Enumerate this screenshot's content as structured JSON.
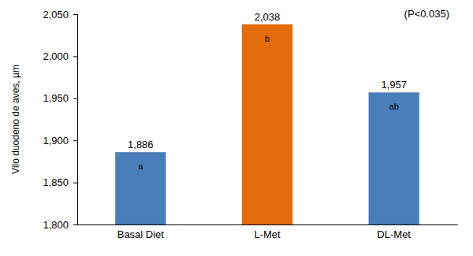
{
  "chart_data": {
    "type": "bar",
    "y_label": "Vilo duodeno de aves, µm",
    "annotation": "(P<0.035)",
    "categories": [
      "Basal Diet",
      "L-Met",
      "DL-Met"
    ],
    "values": [
      1886,
      2038,
      1957
    ],
    "value_labels": [
      "1,886",
      "2,038",
      "1,957"
    ],
    "significance_letters": [
      "a",
      "b",
      "ab"
    ],
    "colors": [
      "#4a7ebb",
      "#e46c0a",
      "#4a7ebb"
    ],
    "data_labels": true,
    "grid": false,
    "ylim": [
      1800,
      2050
    ],
    "yticks": [
      {
        "value": 1800,
        "label": "1,800"
      },
      {
        "value": 1850,
        "label": "1,850"
      },
      {
        "value": 1900,
        "label": "1,900"
      },
      {
        "value": 1950,
        "label": "1,950"
      },
      {
        "value": 2000,
        "label": "2,000"
      },
      {
        "value": 2050,
        "label": "2,050"
      }
    ]
  }
}
